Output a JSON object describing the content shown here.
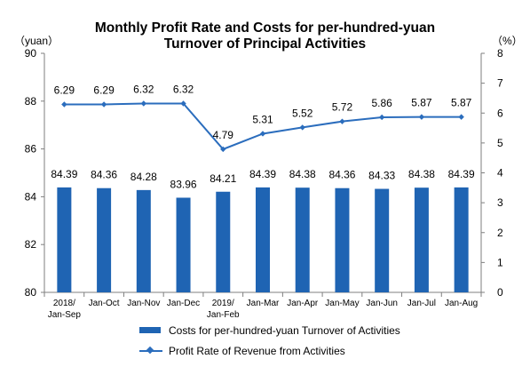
{
  "chart_data": {
    "type": "bar+line",
    "title_line1": "Monthly Profit Rate and Costs for per-hundred-yuan",
    "title_line2": "Turnover of Principal Activities",
    "left_unit": "（yuan）",
    "right_unit": "（%）",
    "categories": [
      [
        "2018/",
        "Jan-Sep"
      ],
      [
        "Jan-Oct"
      ],
      [
        "Jan-Nov"
      ],
      [
        "Jan-Dec"
      ],
      [
        "2019/",
        "Jan-Feb"
      ],
      [
        "Jan-Mar"
      ],
      [
        "Jan-Apr"
      ],
      [
        "Jan-May"
      ],
      [
        "Jan-Jun"
      ],
      [
        "Jan-Jul"
      ],
      [
        "Jan-Aug"
      ]
    ],
    "left_axis": {
      "min": 80,
      "max": 90,
      "ticks": [
        80,
        82,
        84,
        86,
        88,
        90
      ]
    },
    "right_axis": {
      "min": 0,
      "max": 8,
      "ticks": [
        0,
        1,
        2,
        3,
        4,
        5,
        6,
        7,
        8
      ]
    },
    "series": [
      {
        "name": "Costs for per-hundred-yuan Turnover of  Activities",
        "type": "bar",
        "axis": "left",
        "color": "#1f64b3",
        "values": [
          84.39,
          84.36,
          84.28,
          83.96,
          84.21,
          84.39,
          84.38,
          84.36,
          84.33,
          84.38,
          84.39
        ],
        "labels": [
          "84.39",
          "84.36",
          "84.28",
          "83.96",
          "84.21",
          "84.39",
          "84.38",
          "84.36",
          "84.33",
          "84.38",
          "84.39"
        ]
      },
      {
        "name": "Profit Rate of Revenue from Activities",
        "type": "line",
        "axis": "right",
        "color": "#2b6dbd",
        "values": [
          6.29,
          6.29,
          6.32,
          6.32,
          4.79,
          5.31,
          5.52,
          5.72,
          5.86,
          5.87,
          5.87
        ],
        "labels": [
          "6.29",
          "6.29",
          "6.32",
          "6.32",
          "4.79",
          "5.31",
          "5.52",
          "5.72",
          "5.86",
          "5.87",
          "5.87"
        ]
      }
    ]
  }
}
